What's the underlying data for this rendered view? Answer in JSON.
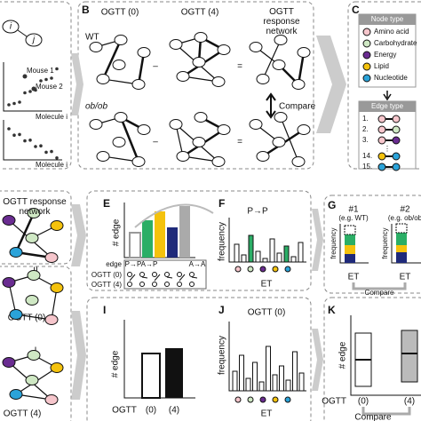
{
  "panel_a": {
    "node_i": "i",
    "node_j": "j",
    "mouse1": "Mouse 1",
    "mouse2": "Mouse 2",
    "xlabel1": "Molecule i",
    "xlabel2": "Molecule i"
  },
  "panel_b": {
    "label": "B",
    "col1": "OGTT (0)",
    "col2": "OGTT (4)",
    "col3": "OGTT response network",
    "row1": "WT",
    "row2": "ob/ob",
    "minus1": "–",
    "minus2": "–",
    "equals1": "=",
    "equals2": "=",
    "compare": "Compare"
  },
  "panel_c": {
    "label": "C",
    "node_title": "Node type",
    "node_types": [
      "Amino acid",
      "Carbohydrate",
      "Energy",
      "Lipid",
      "Nucleotide"
    ],
    "edge_title": "Edge type",
    "edge_types": [
      "1.",
      "2.",
      "3.",
      "14.",
      "15."
    ]
  },
  "panel_d": {
    "title": "OGTT response network",
    "equals": "II",
    "minus": "I",
    "net1": "OGTT (0)",
    "net2": "OGTT (4)"
  },
  "panel_e": {
    "label": "E",
    "ylabel": "# edge",
    "edge": "edge",
    "edge_cols": [
      "P→P",
      "A→P",
      "A→A"
    ],
    "row1": "OGTT (0)",
    "row2": "OGTT (4)"
  },
  "panel_f": {
    "label": "F",
    "title": "P→P",
    "ylabel": "frequency",
    "xlabel": "ET"
  },
  "panel_g": {
    "label": "G",
    "n1": "#1",
    "n1_sub": "(e.g. WT)",
    "n2": "#2",
    "n2_sub": "(e.g. ob/ob",
    "ylabel1": "frequency",
    "ylabel2": "frequency",
    "xlabel1": "ET",
    "xlabel2": "ET",
    "compare": "Compare"
  },
  "panel_i": {
    "label": "I",
    "ylabel": "# edge",
    "xlabel": "OGTT",
    "x1": "(0)",
    "x2": "(4)"
  },
  "panel_j": {
    "label": "J",
    "title": "OGTT (0)",
    "ylabel": "frequency",
    "xlabel": "ET"
  },
  "panel_k": {
    "label": "K",
    "ylabel": "# edge",
    "xlabel": "OGTT",
    "x1": "(0)",
    "x2": "(4)",
    "compare": "Compare"
  }
}
